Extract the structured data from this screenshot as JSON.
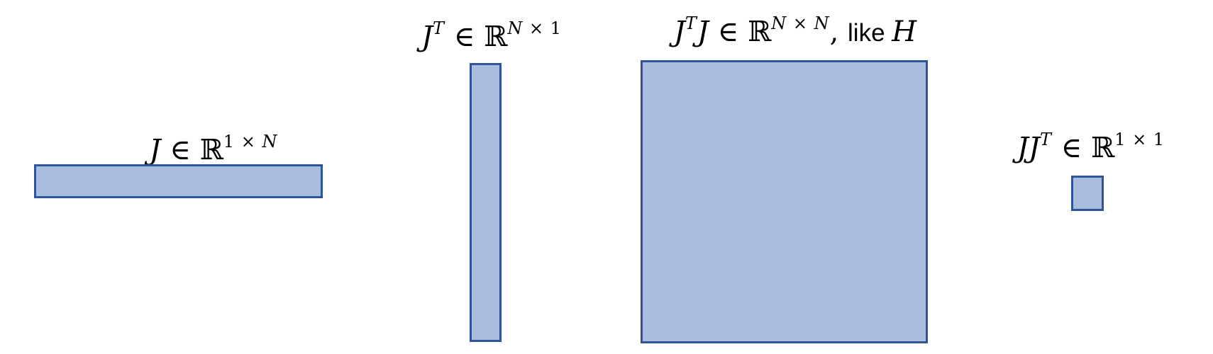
{
  "colors": {
    "page_bg": "#ffffff",
    "shape_fill": "#a9bedd",
    "shape_border": "#2f5597",
    "text_color": "#000000"
  },
  "figures": [
    {
      "id": "J",
      "label": [
        {
          "t": "J",
          "s": "it"
        },
        {
          "t": " ∈ ℝ",
          "s": "up"
        },
        {
          "t": "1 × ",
          "s": "sup-up"
        },
        {
          "t": "N",
          "s": "sup-it"
        }
      ]
    },
    {
      "id": "J-transpose",
      "label": [
        {
          "t": "J",
          "s": "it"
        },
        {
          "t": "T",
          "s": "sup-it"
        },
        {
          "t": " ∈ ℝ",
          "s": "up"
        },
        {
          "t": "N",
          "s": "sup-it"
        },
        {
          "t": " × 1",
          "s": "sup-up"
        }
      ]
    },
    {
      "id": "JT-J",
      "label": [
        {
          "t": "J",
          "s": "it"
        },
        {
          "t": "T",
          "s": "sup-it"
        },
        {
          "t": "J",
          "s": "it"
        },
        {
          "t": " ∈ ℝ",
          "s": "up"
        },
        {
          "t": "N",
          "s": "sup-it"
        },
        {
          "t": " × ",
          "s": "sup-up"
        },
        {
          "t": "N",
          "s": "sup-it"
        },
        {
          "t": ", ",
          "s": "up"
        },
        {
          "t": "like ",
          "s": "sans"
        },
        {
          "t": "H",
          "s": "it"
        }
      ]
    },
    {
      "id": "J-JT",
      "label": [
        {
          "t": "JJ",
          "s": "it"
        },
        {
          "t": "T",
          "s": "sup-it"
        },
        {
          "t": " ∈ ℝ",
          "s": "up"
        },
        {
          "t": "1 × 1",
          "s": "sup-up"
        }
      ]
    }
  ]
}
